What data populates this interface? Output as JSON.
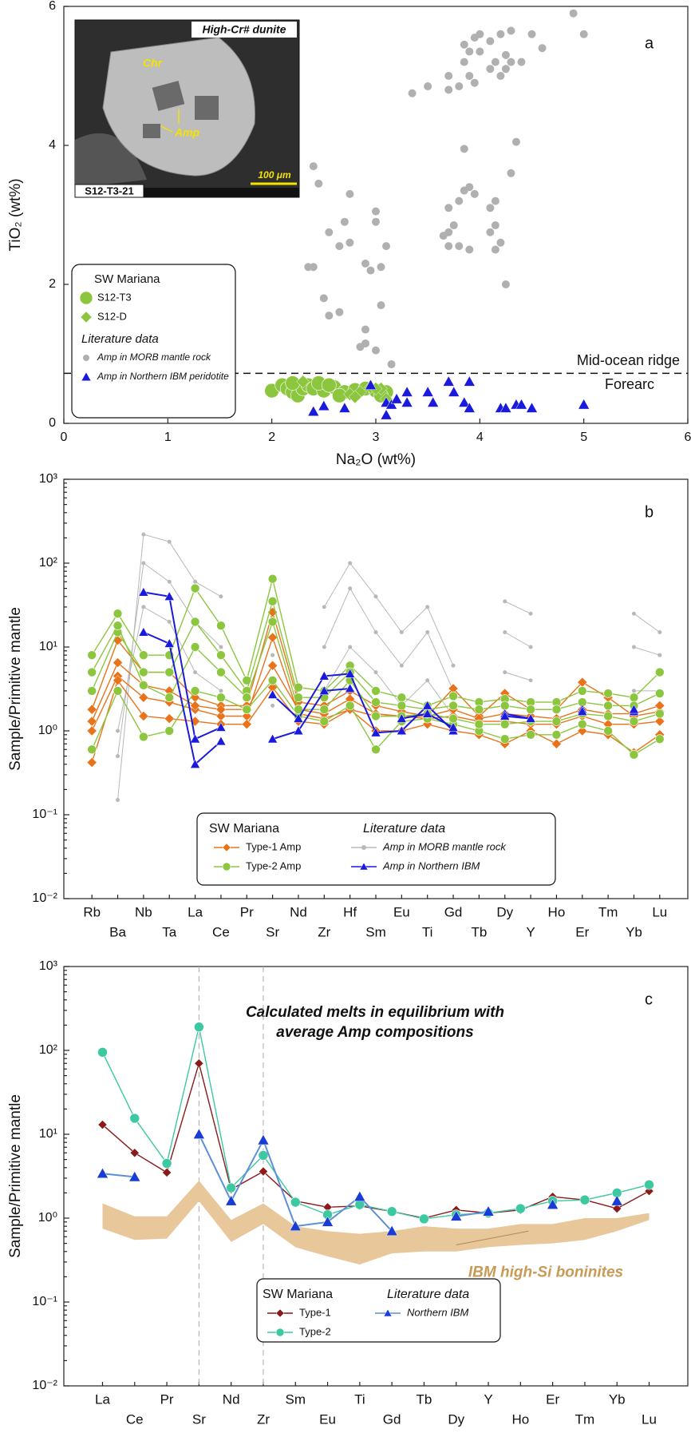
{
  "chart_data": [
    {
      "type": "scatter",
      "panel_label": "a",
      "xlabel": "Na₂O (wt%)",
      "ylabel": "TiO₂ (wt%)",
      "xlim": [
        0,
        6
      ],
      "ylim": [
        0,
        6
      ],
      "xticks": [
        0,
        1,
        2,
        3,
        4,
        5,
        6
      ],
      "yticks": [
        0,
        2,
        4,
        6
      ],
      "legend_groups": [
        "SW Mariana",
        "Literature data"
      ],
      "reference_line": {
        "value": 0.72,
        "label_above": "Mid-ocean ridge",
        "label_below": "Forearc"
      },
      "inset": {
        "title": "High-Cr# dunite",
        "labels": [
          "Chr",
          "Amp"
        ],
        "scale_bar": "100 μm",
        "sample": "S12-T3-21"
      },
      "series": [
        {
          "name": "S12-T3",
          "color": "#8cc63f",
          "marker": "circle",
          "legend_group": 0,
          "x": [
            2.0,
            2.1,
            2.15,
            2.2,
            2.25,
            2.3,
            2.35,
            2.4,
            2.5,
            2.6,
            2.7,
            2.8,
            2.9,
            3.0,
            3.1,
            2.45,
            2.55,
            2.2,
            2.65,
            3.05
          ],
          "y": [
            0.47,
            0.55,
            0.5,
            0.45,
            0.4,
            0.5,
            0.55,
            0.5,
            0.47,
            0.52,
            0.45,
            0.48,
            0.5,
            0.47,
            0.45,
            0.58,
            0.55,
            0.58,
            0.4,
            0.4
          ]
        },
        {
          "name": "S12-D",
          "color": "#8cc63f",
          "marker": "diamond",
          "legend_group": 0,
          "x": [
            2.75,
            2.85,
            2.95,
            3.05,
            3.1,
            2.3,
            2.8,
            3.0
          ],
          "y": [
            0.42,
            0.45,
            0.52,
            0.5,
            0.35,
            0.6,
            0.38,
            0.5
          ]
        },
        {
          "name": "Amp in MORB mantle rock",
          "color": "#b0b0b0",
          "marker": "dot",
          "legend_group": 1,
          "x": [
            2.4,
            2.45,
            2.35,
            2.4,
            2.55,
            2.5,
            2.55,
            2.7,
            2.65,
            2.65,
            2.75,
            2.75,
            2.9,
            2.9,
            2.85,
            2.9,
            2.95,
            3.0,
            3.0,
            3.05,
            3.0,
            3.1,
            3.15,
            3.05,
            3.35,
            3.5,
            3.7,
            3.7,
            3.8,
            3.85,
            3.9,
            3.95,
            3.85,
            3.95,
            3.9,
            4.0,
            4.0,
            4.1,
            4.1,
            4.15,
            4.2,
            4.2,
            4.25,
            4.25,
            4.3,
            4.4,
            4.5,
            4.3,
            4.6,
            4.9,
            5.0,
            3.85,
            3.85,
            3.9,
            3.95,
            3.8,
            3.7,
            3.7,
            3.75,
            3.65,
            3.7,
            3.8,
            3.9,
            4.15,
            4.1,
            4.15,
            4.2,
            4.25,
            4.1,
            4.3,
            4.35,
            4.15
          ],
          "y": [
            3.7,
            3.45,
            2.25,
            2.25,
            2.75,
            1.8,
            1.55,
            2.9,
            2.55,
            1.6,
            2.6,
            3.3,
            2.3,
            1.35,
            1.1,
            1.15,
            2.2,
            2.9,
            3.05,
            1.7,
            1.05,
            2.55,
            0.85,
            2.25,
            4.75,
            4.85,
            4.8,
            5.0,
            4.85,
            5.2,
            5.0,
            4.9,
            5.45,
            5.55,
            5.35,
            5.6,
            5.35,
            5.5,
            5.1,
            5.2,
            5.0,
            5.6,
            5.3,
            5.1,
            5.2,
            5.2,
            5.6,
            5.65,
            5.4,
            5.9,
            5.6,
            3.95,
            3.35,
            3.4,
            3.3,
            3.2,
            3.1,
            2.75,
            2.85,
            2.7,
            2.55,
            2.55,
            2.5,
            2.85,
            2.75,
            2.5,
            2.6,
            2.0,
            3.1,
            3.6,
            4.05,
            3.2
          ]
        },
        {
          "name": "Amp in Northern IBM peridotite",
          "color": "#1a1adc",
          "marker": "triangle",
          "legend_group": 1,
          "x": [
            2.4,
            2.5,
            2.7,
            2.95,
            3.1,
            3.1,
            3.15,
            3.2,
            3.3,
            3.3,
            3.5,
            3.55,
            3.7,
            3.75,
            3.85,
            3.9,
            3.9,
            4.2,
            4.25,
            4.35,
            4.4,
            4.5,
            5.0
          ],
          "y": [
            0.17,
            0.25,
            0.22,
            0.55,
            0.3,
            0.12,
            0.27,
            0.35,
            0.45,
            0.3,
            0.45,
            0.3,
            0.6,
            0.45,
            0.3,
            0.6,
            0.22,
            0.22,
            0.22,
            0.27,
            0.27,
            0.22,
            0.27
          ]
        }
      ]
    },
    {
      "type": "spider",
      "panel_label": "b",
      "ylabel": "Sample/Primitive mantle",
      "log_y": true,
      "categories": [
        "Rb",
        "Ba",
        "Nb",
        "Ta",
        "La",
        "Ce",
        "Pr",
        "Sr",
        "Nd",
        "Zr",
        "Hf",
        "Sm",
        "Eu",
        "Ti",
        "Gd",
        "Tb",
        "Dy",
        "Y",
        "Ho",
        "Er",
        "Tm",
        "Yb",
        "Lu"
      ],
      "ylim": [
        0.01,
        1000
      ],
      "yticks": [
        {
          "value": 0.01,
          "label": "10⁻²"
        },
        {
          "value": 0.1,
          "label": "10⁻¹"
        },
        {
          "value": 1,
          "label": "10⁰"
        },
        {
          "value": 10,
          "label": "10¹"
        },
        {
          "value": 100,
          "label": "10²"
        },
        {
          "value": 1000,
          "label": "10³"
        }
      ],
      "legend_groups": [
        "SW Mariana",
        "Literature data"
      ],
      "series": [
        {
          "name": "Type-1 Amp",
          "color": "#e8731a",
          "marker": "diamond",
          "legend_group": 0,
          "lines": [
            [
              1.0,
              4.5,
              2.5,
              2.2,
              1.8,
              1.5,
              1.5,
              13,
              1.6,
              1.4,
              1.8,
              1.5,
              1.5,
              1.4,
              1.5,
              1.3,
              1.3,
              1.2,
              1.2,
              1.5,
              1.2,
              1.2,
              1.3
            ],
            [
              1.8,
              12,
              5,
              5,
              2.5,
              2.0,
              2.0,
              26,
              2.2,
              2.0,
              3.0,
              2.0,
              1.7,
              1.5,
              3.2,
              1.5,
              2.8,
              1.8,
              1.8,
              3.8,
              2.5,
              1.5,
              1.7
            ],
            [
              0.42,
              4.0,
              1.5,
              1.4,
              1.3,
              1.2,
              1.2,
              3.3,
              1.3,
              1.2,
              1.8,
              1.0,
              1.0,
              1.2,
              1.0,
              0.9,
              0.7,
              1.0,
              0.7,
              1.0,
              0.9,
              0.55,
              0.9
            ],
            [
              1.3,
              6.5,
              3.5,
              3.0,
              2.0,
              1.8,
              1.8,
              6,
              1.8,
              1.6,
              2.4,
              1.6,
              1.5,
              1.5,
              1.8,
              1.4,
              1.6,
              1.5,
              1.4,
              1.8,
              1.6,
              1.6,
              2.0
            ]
          ]
        },
        {
          "name": "Type-2 Amp",
          "color": "#8cc63f",
          "marker": "circle",
          "legend_group": 0,
          "lines": [
            [
              8,
              25,
              8,
              8,
              50,
              18,
              4,
              65,
              3.3,
              3,
              6,
              3,
              2.5,
              2,
              2.6,
              2.2,
              2.4,
              2.2,
              2.2,
              3,
              2.8,
              2.5,
              5
            ],
            [
              3,
              15,
              5,
              5,
              20,
              8,
              3,
              35,
              2.5,
              2.5,
              5,
              2.2,
              2,
              1.8,
              2,
              1.8,
              2,
              1.8,
              1.8,
              2.2,
              2,
              2,
              2.8
            ],
            [
              0.6,
              3,
              0.85,
              1,
              3,
              2.5,
              1.8,
              4,
              1.5,
              1.3,
              2,
              0.6,
              1.3,
              1.4,
              1.2,
              1.0,
              0.8,
              0.9,
              0.9,
              1.2,
              1.0,
              0.52,
              0.8
            ],
            [
              5,
              18,
              3.5,
              2.5,
              10,
              5,
              2.5,
              20,
              1.8,
              1.8,
              4,
              1.5,
              1.5,
              1.6,
              1.4,
              1.2,
              1.2,
              1.3,
              1.3,
              1.6,
              1.5,
              1.3,
              1.6
            ]
          ]
        },
        {
          "name": "Amp in MORB mantle rock",
          "color": "#b8b8b8",
          "marker": "dot",
          "legend_group": 1,
          "lines": [
            [
              null,
              0.15,
              220,
              180,
              60,
              40,
              null,
              8,
              null,
              30,
              100,
              40,
              15,
              30,
              6,
              null,
              35,
              25,
              null,
              null,
              null,
              25,
              15
            ],
            [
              null,
              0.5,
              100,
              60,
              20,
              10,
              null,
              4,
              null,
              10,
              50,
              15,
              6,
              15,
              3,
              null,
              15,
              10,
              null,
              null,
              null,
              10,
              8
            ],
            [
              null,
              1.0,
              30,
              20,
              5,
              3,
              null,
              2,
              null,
              3,
              10,
              5,
              2,
              4,
              1.5,
              null,
              5,
              4,
              null,
              null,
              null,
              3,
              3
            ]
          ]
        },
        {
          "name": "Amp in Northern IBM",
          "color": "#1a1adc",
          "marker": "triangle",
          "legend_group": 1,
          "lines": [
            [
              null,
              null,
              45,
              40,
              0.8,
              1.1,
              null,
              2.7,
              1.4,
              4.5,
              4.8,
              0.95,
              1.0,
              2.0,
              1.0,
              null,
              1.6,
              1.4,
              null,
              1.8,
              null,
              1.7,
              null
            ],
            [
              null,
              null,
              15,
              11,
              0.4,
              0.75,
              null,
              0.8,
              1.0,
              3.0,
              3.2,
              null,
              1.4,
              1.6,
              1.1,
              null,
              1.5,
              1.4,
              null,
              1.7,
              null,
              1.8,
              null
            ]
          ]
        }
      ]
    },
    {
      "type": "spider",
      "panel_label": "c",
      "ylabel": "Sample/Primitive mantle",
      "log_y": true,
      "annotation": [
        "Calculated melts in equilibrium with",
        "average Amp compositions"
      ],
      "categories": [
        "La",
        "Ce",
        "Pr",
        "Sr",
        "Nd",
        "Zr",
        "Sm",
        "Eu",
        "Ti",
        "Gd",
        "Tb",
        "Dy",
        "Y",
        "Ho",
        "Er",
        "Tm",
        "Yb",
        "Lu"
      ],
      "ylim": [
        0.01,
        1000
      ],
      "yticks": [
        {
          "value": 0.01,
          "label": "10⁻²"
        },
        {
          "value": 0.1,
          "label": "10⁻¹"
        },
        {
          "value": 1,
          "label": "10⁰"
        },
        {
          "value": 10,
          "label": "10¹"
        },
        {
          "value": 100,
          "label": "10²"
        },
        {
          "value": 1000,
          "label": "10³"
        }
      ],
      "legend_groups": [
        "SW Mariana",
        "Literature data"
      ],
      "band": {
        "label": "IBM high-Si boninites",
        "color": "#e8c89a",
        "lower": [
          0.75,
          0.55,
          0.57,
          1.6,
          0.52,
          0.85,
          0.45,
          0.35,
          0.28,
          0.38,
          0.4,
          0.4,
          0.45,
          0.48,
          0.5,
          0.55,
          0.7,
          0.95
        ],
        "upper": [
          1.5,
          1.05,
          1.05,
          2.8,
          0.95,
          1.5,
          0.8,
          0.7,
          0.65,
          0.7,
          0.8,
          0.75,
          0.75,
          0.85,
          0.85,
          1.0,
          1.0,
          1.15
        ]
      },
      "series": [
        {
          "name": "Type-1",
          "color": "#8b1a1a",
          "marker": "diamond",
          "legend_group": 0,
          "lines": [
            [
              13,
              6,
              3.5,
              70,
              2.2,
              3.6,
              1.6,
              1.35,
              1.4,
              1.2,
              1.0,
              1.25,
              1.15,
              1.25,
              1.8,
              1.65,
              1.3,
              2.1
            ]
          ]
        },
        {
          "name": "Type-2",
          "color": "#3cc8a0",
          "marker": "circle",
          "legend_group": 0,
          "lines": [
            [
              95,
              15.5,
              4.5,
              190,
              2.3,
              5.6,
              1.55,
              1.1,
              1.45,
              1.2,
              0.98,
              1.1,
              1.15,
              1.3,
              1.6,
              1.65,
              2.0,
              2.5
            ]
          ]
        },
        {
          "name": "Northern IBM",
          "color": "#5b8fd6",
          "marker": "triangle",
          "legend_group": 1,
          "lines": [
            [
              3.4,
              3.1,
              null,
              10,
              1.6,
              8.5,
              0.8,
              0.9,
              1.8,
              0.7,
              null,
              1.05,
              1.2,
              null,
              1.45,
              null,
              1.6,
              null
            ]
          ]
        }
      ]
    }
  ]
}
